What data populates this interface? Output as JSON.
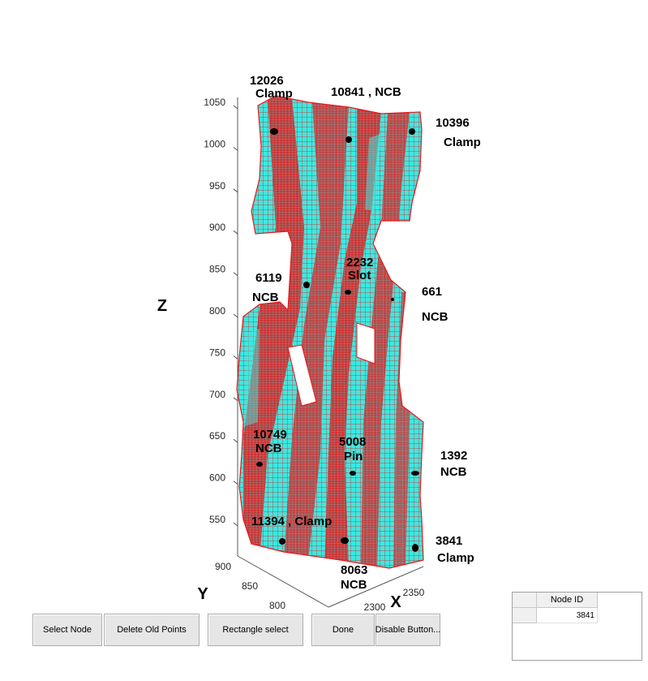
{
  "colors": {
    "mesh_fill": "#3ee8e0",
    "mesh_lines": "#e8161a",
    "node_marker": "#000000",
    "axis": "#555555"
  },
  "axes": {
    "z_label": "Z",
    "y_label": "Y",
    "x_label": "X",
    "z_ticks": [
      "1050",
      "1000",
      "950",
      "900",
      "850",
      "800",
      "750",
      "700",
      "650",
      "600",
      "550"
    ],
    "y_ticks": [
      "900",
      "850",
      "800"
    ],
    "x_ticks": [
      "2300",
      "2350"
    ]
  },
  "annotations": [
    {
      "id": "12026",
      "type": "Clamp",
      "line1": "12026",
      "line2": "Clamp"
    },
    {
      "id": "10841",
      "type": "NCB",
      "line1": "10841 , NCB",
      "line2": ""
    },
    {
      "id": "10396",
      "type": "Clamp",
      "line1": "10396",
      "line2": "Clamp"
    },
    {
      "id": "6119",
      "type": "NCB",
      "line1": "6119",
      "line2": "NCB"
    },
    {
      "id": "2232",
      "type": "Slot",
      "line1": "2232",
      "line2": "Slot"
    },
    {
      "id": "661",
      "type": "NCB",
      "line1": "661",
      "line2": "NCB"
    },
    {
      "id": "10749",
      "type": "NCB",
      "line1": "10749",
      "line2": "NCB"
    },
    {
      "id": "5008",
      "type": "Pin",
      "line1": "5008",
      "line2": "Pin"
    },
    {
      "id": "1392",
      "type": "NCB",
      "line1": "1392",
      "line2": "NCB"
    },
    {
      "id": "11394",
      "type": "Clamp",
      "line1": "11394 , Clamp",
      "line2": ""
    },
    {
      "id": "3841",
      "type": "Clamp",
      "line1": "3841",
      "line2": "Clamp"
    },
    {
      "id": "8063",
      "type": "NCB",
      "line1": "8063",
      "line2": "NCB"
    }
  ],
  "buttons": {
    "select_node": "Select Node",
    "delete_old_points": "Delete Old Points",
    "rectangle_select": "Rectangle select",
    "done": "Done",
    "disable_buttons": "Disable Button..."
  },
  "table": {
    "column_header": "Node ID",
    "rows": [
      {
        "node_id": "3841"
      }
    ]
  }
}
